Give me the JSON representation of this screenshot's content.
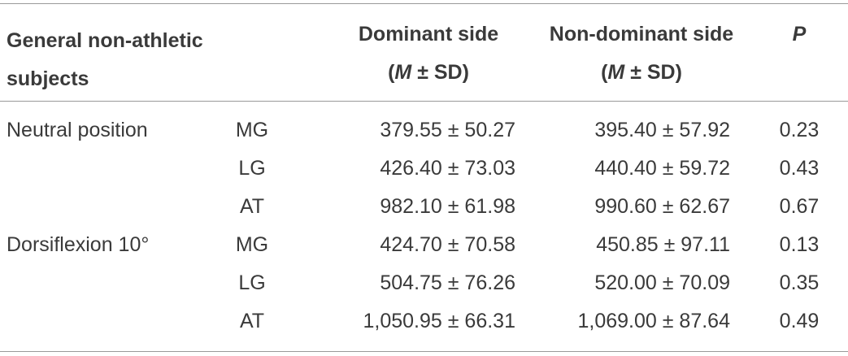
{
  "table": {
    "header": {
      "subjects": "General non-athletic subjects",
      "dominant": {
        "label": "Dominant side",
        "stat": [
          "(",
          "M",
          " ± SD)"
        ]
      },
      "non_dominant": {
        "label": "Non-dominant side",
        "stat": [
          "(",
          "M",
          " ± SD)"
        ]
      },
      "p": "P"
    },
    "groups": [
      {
        "label": "Neutral position",
        "rows": [
          [
            "MG",
            "379.55 ± 50.27",
            "395.40 ± 57.92",
            "0.23"
          ],
          [
            "LG",
            "426.40 ± 73.03",
            "440.40 ± 59.72",
            "0.43"
          ],
          [
            "AT",
            "982.10 ± 61.98",
            "990.60 ± 62.67",
            "0.67"
          ]
        ]
      },
      {
        "label": "Dorsiflexion 10°",
        "rows": [
          [
            "MG",
            "424.70 ± 70.58",
            "450.85 ± 97.11",
            "0.13"
          ],
          [
            "LG",
            "504.75 ± 76.26",
            "520.00 ± 70.09",
            "0.35"
          ],
          [
            "AT",
            "1,050.95 ± 66.31",
            "1,069.00 ± 87.64",
            "0.49"
          ]
        ]
      }
    ]
  }
}
